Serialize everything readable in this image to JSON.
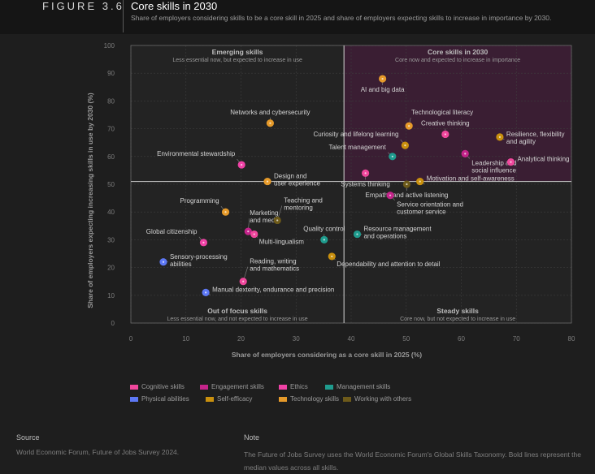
{
  "header": {
    "figure_label": "FIGURE 3.6",
    "title": "Core skills in 2030",
    "subtitle": "Share of employers considering skills to be a core skill in 2025 and share of employers expecting skills to increase in importance by 2030."
  },
  "colors": {
    "background": "#1e1e1e",
    "plot_background": "#232323",
    "core_quadrant": "#3a1e33",
    "Cognitive skills": "#f0479c",
    "Engagement skills": "#c4248a",
    "Ethics": "#f042a6",
    "Management skills": "#1f9c8e",
    "Physical abilities": "#5d78f5",
    "Self-efficacy": "#c9900e",
    "Technology skills": "#e69a2a",
    "Working with others": "#6d5a1a"
  },
  "chart_data": {
    "type": "scatter",
    "xlabel": "Share of employers considering as a core skill in 2025 (%)",
    "ylabel": "Share of employers expecting increasing skills in use by 2030 (%)",
    "xlim": [
      0,
      80
    ],
    "ylim": [
      0,
      100
    ],
    "xticks": [
      "0",
      "10",
      "20",
      "30",
      "40",
      "50",
      "60",
      "70",
      "80"
    ],
    "yticks": [
      "0",
      "10",
      "20",
      "30",
      "40",
      "50",
      "60",
      "70",
      "80",
      "90",
      "100"
    ],
    "median_x": 38.7,
    "median_y": 51,
    "grid": true,
    "quadrants": [
      {
        "title": "Emerging skills",
        "subtitle": "Less essential now, but expected to increase in use",
        "position": "top-left"
      },
      {
        "title": "Core skills in 2030",
        "subtitle": "Core now and expected to increase in importance",
        "position": "top-right"
      },
      {
        "title": "Out of focus skills",
        "subtitle": "Less essential now, and not expected to increase in use",
        "position": "bottom-left"
      },
      {
        "title": "Steady skills",
        "subtitle": "Core now, but not expected to increase in use",
        "position": "bottom-right"
      }
    ],
    "points": [
      {
        "label": "AI and big data",
        "x": 45.7,
        "y": 88,
        "category": "Technology skills",
        "la": "below"
      },
      {
        "label": "Technological literacy",
        "x": 50.5,
        "y": 71,
        "category": "Technology skills",
        "la": "upright"
      },
      {
        "label": "Creative thinking",
        "x": 57.1,
        "y": 68,
        "category": "Cognitive skills",
        "la": "up"
      },
      {
        "label": "Resilience, flexibility and agility",
        "x": 67.0,
        "y": 67,
        "category": "Self-efficacy",
        "la": "right"
      },
      {
        "label": "Curiosity and lifelong learning",
        "x": 49.8,
        "y": 64,
        "category": "Self-efficacy",
        "la": "upleft"
      },
      {
        "label": "Talent management",
        "x": 47.5,
        "y": 60,
        "category": "Management skills",
        "la": "upleft2"
      },
      {
        "label": "Leadership and social influence",
        "x": 60.7,
        "y": 61,
        "category": "Engagement skills",
        "la": "below2"
      },
      {
        "label": "Analytical thinking",
        "x": 69.0,
        "y": 58,
        "category": "Cognitive skills",
        "la": "right"
      },
      {
        "label": "Systems thinking",
        "x": 42.6,
        "y": 54,
        "category": "Cognitive skills",
        "la": "below"
      },
      {
        "label": "Motivation and self-awareness",
        "x": 52.5,
        "y": 51,
        "category": "Self-efficacy",
        "la": "right"
      },
      {
        "label": "Empathy and active listening",
        "x": 50.1,
        "y": 50,
        "category": "Working with others",
        "la": "below"
      },
      {
        "label": "Service orientation and customer service",
        "x": 47.1,
        "y": 46,
        "category": "Engagement skills",
        "la": "below2"
      },
      {
        "label": "Networks and cybersecurity",
        "x": 25.3,
        "y": 72,
        "category": "Technology skills",
        "la": "up"
      },
      {
        "label": "Environmental stewardship",
        "x": 20.1,
        "y": 57,
        "category": "Ethics",
        "la": "upleft"
      },
      {
        "label": "Design and user experience",
        "x": 24.8,
        "y": 51,
        "category": "Technology skills",
        "la": "right2"
      },
      {
        "label": "Programming",
        "x": 17.2,
        "y": 40,
        "category": "Technology skills",
        "la": "upleft"
      },
      {
        "label": "Marketing and media",
        "x": 21.3,
        "y": 33,
        "category": "Engagement skills",
        "la": "up2"
      },
      {
        "label": "Teaching and mentoring",
        "x": 26.6,
        "y": 37,
        "category": "Working with others",
        "la": "upright2"
      },
      {
        "label": "Global citizenship",
        "x": 13.2,
        "y": 29,
        "category": "Ethics",
        "la": "upleft"
      },
      {
        "label": "Multi-lingualism",
        "x": 22.4,
        "y": 32,
        "category": "Cognitive skills",
        "la": "belowright"
      },
      {
        "label": "Quality control",
        "x": 35.1,
        "y": 30,
        "category": "Management skills",
        "la": "up"
      },
      {
        "label": "Resource management and operations",
        "x": 41.1,
        "y": 32,
        "category": "Management skills",
        "la": "right2"
      },
      {
        "label": "Sensory-processing abilities",
        "x": 5.9,
        "y": 22,
        "category": "Physical abilities",
        "la": "right2"
      },
      {
        "label": "Reading, writing and mathematics",
        "x": 20.4,
        "y": 15,
        "category": "Cognitive skills",
        "la": "upright2"
      },
      {
        "label": "Dependability and attention to detail",
        "x": 36.5,
        "y": 24,
        "category": "Self-efficacy",
        "la": "belowright"
      },
      {
        "label": "Manual dexterity, endurance and precision",
        "x": 13.6,
        "y": 11,
        "category": "Physical abilities",
        "la": "right"
      }
    ]
  },
  "legend": [
    {
      "name": "Cognitive skills"
    },
    {
      "name": "Engagement skills"
    },
    {
      "name": "Ethics"
    },
    {
      "name": "Management skills"
    },
    {
      "name": "Physical abilities"
    },
    {
      "name": "Self-efficacy"
    },
    {
      "name": "Technology skills"
    },
    {
      "name": "Working with others"
    }
  ],
  "footer": {
    "source_heading": "Source",
    "source_text": "World Economic Forum, Future of Jobs Survey 2024.",
    "note_heading": "Note",
    "note_text": "The Future of Jobs Survey uses the World Economic Forum's Global Skills Taxonomy. Bold lines represent the median values across all skills."
  }
}
